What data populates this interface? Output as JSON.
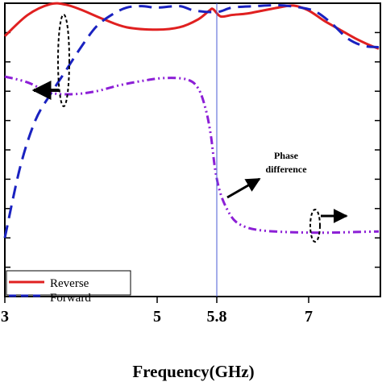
{
  "chart_data": {
    "type": "line",
    "xlabel": "Frequency(GHz)",
    "xlim": [
      3,
      7.9
    ],
    "ylim": [
      0,
      1
    ],
    "x_ticks": [
      3,
      5,
      5.8,
      7
    ],
    "x_tick_labels": [
      "3",
      "5",
      "5.8",
      "7"
    ],
    "y_tick_count": 10,
    "vertical_marker": {
      "x": 5.8,
      "color": "#4a5bd6"
    },
    "series": [
      {
        "name": "Reverse",
        "color": "#e02020",
        "style": "solid",
        "axis": "left",
        "x": [
          3.0,
          3.3,
          3.6,
          3.8,
          4.0,
          4.3,
          4.6,
          5.0,
          5.3,
          5.55,
          5.7,
          5.75,
          5.85,
          6.0,
          6.2,
          6.4,
          6.6,
          6.8,
          7.0,
          7.2,
          7.4,
          7.6,
          7.8,
          7.9
        ],
        "values": [
          0.888,
          0.96,
          0.997,
          0.995,
          0.978,
          0.945,
          0.918,
          0.91,
          0.918,
          0.945,
          0.975,
          0.98,
          0.955,
          0.96,
          0.965,
          0.975,
          0.985,
          0.992,
          0.975,
          0.94,
          0.91,
          0.88,
          0.855,
          0.845
        ]
      },
      {
        "name": "Forward",
        "color": "#1a22c0",
        "style": "dashed",
        "axis": "left",
        "x": [
          3.0,
          3.2,
          3.4,
          3.6,
          3.8,
          4.0,
          4.2,
          4.4,
          4.6,
          4.8,
          5.0,
          5.3,
          5.5,
          5.8,
          6.0,
          6.3,
          6.6,
          6.9,
          7.1,
          7.3,
          7.5,
          7.7,
          7.9
        ],
        "values": [
          0.2,
          0.44,
          0.6,
          0.69,
          0.77,
          0.85,
          0.92,
          0.96,
          0.985,
          0.99,
          0.985,
          0.99,
          0.975,
          0.97,
          0.985,
          0.99,
          0.993,
          0.985,
          0.97,
          0.93,
          0.88,
          0.855,
          0.85
        ]
      },
      {
        "name": "Phase difference",
        "color": "#8c1fd6",
        "style": "dash-dot",
        "axis": "right",
        "x": [
          3.0,
          3.3,
          3.6,
          3.9,
          4.2,
          4.5,
          4.8,
          5.1,
          5.4,
          5.55,
          5.65,
          5.72,
          5.78,
          5.85,
          5.95,
          6.05,
          6.2,
          6.4,
          6.7,
          7.0,
          7.3,
          7.6,
          7.9
        ],
        "values": [
          0.75,
          0.73,
          0.695,
          0.69,
          0.7,
          0.72,
          0.735,
          0.745,
          0.74,
          0.71,
          0.64,
          0.55,
          0.43,
          0.35,
          0.29,
          0.255,
          0.235,
          0.225,
          0.22,
          0.218,
          0.218,
          0.22,
          0.222
        ]
      }
    ],
    "legend": {
      "position": "bottom-left",
      "entries": [
        {
          "label": "Reverse",
          "color": "#e02020",
          "style": "solid"
        },
        {
          "label": "Forward",
          "color": "#1a22c0",
          "style": "dashed"
        }
      ]
    },
    "annotations": {
      "phase_label_line1": "Phase",
      "phase_label_line2": "difference"
    }
  }
}
